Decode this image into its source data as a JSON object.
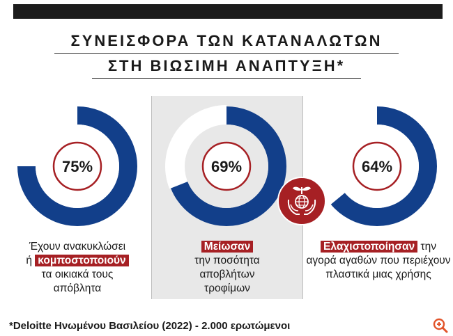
{
  "header": {
    "title_line1": "ΣΥΝΕΙΣΦΟΡΑ ΤΩΝ ΚΑΤΑΝΑΛΩΤΩΝ",
    "title_line2": "ΣΤΗ ΒΙΩΣΙΜΗ ΑΝΑΠΤΥΞΗ*"
  },
  "colors": {
    "navy": "#123f8a",
    "crimson": "#a62024",
    "panel_gray": "#e8e8e8"
  },
  "chart_data": {
    "type": "pie",
    "title": "ΣΥΝΕΙΣΦΟΡΑ ΤΩΝ ΚΑΤΑΝΑΛΩΤΩΝ ΣΤΗ ΒΙΩΣΙΜΗ ΑΝΑΠΤΥΞΗ*",
    "items": [
      {
        "value": 75,
        "label": "75%",
        "caption_pre": "Έχουν ανακυκλώσει",
        "caption_hl_prefix": "ή ",
        "caption_hl": "κομποστοποιούν",
        "caption_post": "τα οικιακά τους απόβλητα"
      },
      {
        "value": 69,
        "label": "69%",
        "caption_pre": "",
        "caption_hl_prefix": "",
        "caption_hl": "Μείωσαν",
        "caption_post": "την ποσότητα αποβλήτων τροφίμων"
      },
      {
        "value": 64,
        "label": "64%",
        "caption_pre": "",
        "caption_hl_prefix": "",
        "caption_hl": "Ελαχιστοποίησαν",
        "caption_post": "την αγορά αγαθών που περιέχουν πλαστικά μιας χρήσης"
      }
    ]
  },
  "footer": {
    "source": "*Deloitte Ηνωμένου Βασιλείου (2022) - 2.000 ερωτώμενοι"
  },
  "icons": {
    "center": "hands-globe-sprout-icon",
    "zoom": "zoom-in-icon"
  }
}
